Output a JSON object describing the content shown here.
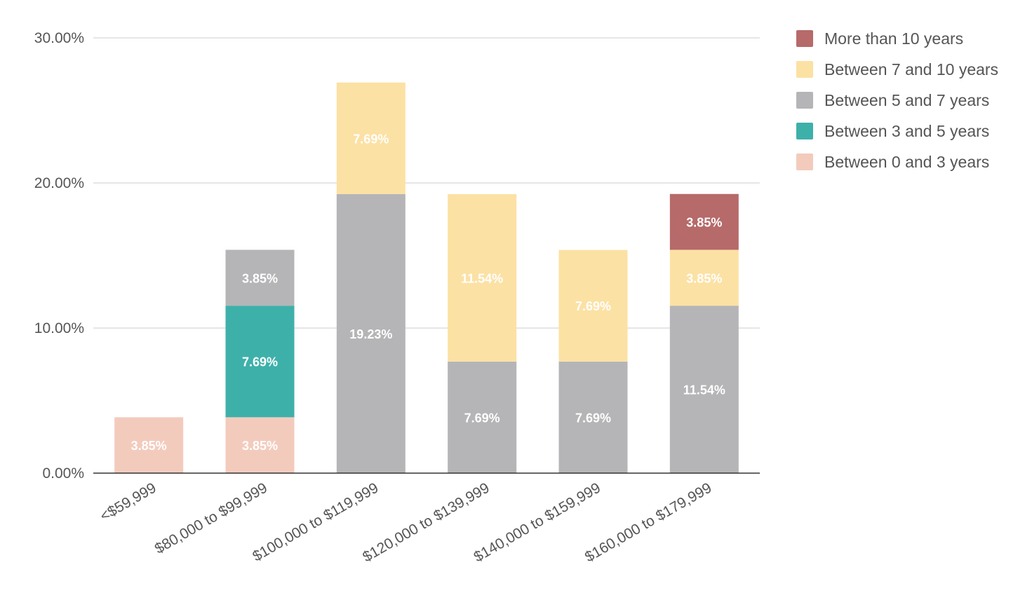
{
  "chart_data": {
    "type": "bar",
    "stacked": true,
    "title": "",
    "xlabel": "",
    "ylabel": "",
    "ylim": [
      0,
      30
    ],
    "yticks": [
      0,
      10,
      20,
      30
    ],
    "ytick_labels": [
      "0.00%",
      "10.00%",
      "20.00%",
      "30.00%"
    ],
    "grid": true,
    "legend_position": "top-right",
    "categories": [
      "<$59,999",
      "$80,000 to $99,999",
      "$100,000 to $119,999",
      "$120,000 to $139,999",
      "$140,000 to $159,999",
      "$160,000 to $179,999"
    ],
    "series": [
      {
        "name": "Between 0 and 3 years",
        "color": "#f3cbbd",
        "values": [
          3.85,
          3.85,
          0,
          0,
          0,
          0
        ],
        "labels": [
          "3.85%",
          "3.85%",
          "",
          "",
          "",
          ""
        ]
      },
      {
        "name": "Between 3 and 5 years",
        "color": "#3eb0aa",
        "values": [
          0,
          7.69,
          0,
          0,
          0,
          0
        ],
        "labels": [
          "",
          "7.69%",
          "",
          "",
          "",
          ""
        ]
      },
      {
        "name": "Between 5 and 7 years",
        "color": "#b5b5b7",
        "values": [
          0,
          3.85,
          19.23,
          7.69,
          7.69,
          11.54
        ],
        "labels": [
          "",
          "3.85%",
          "19.23%",
          "7.69%",
          "7.69%",
          "11.54%"
        ]
      },
      {
        "name": "Between 7 and 10 years",
        "color": "#fce1a4",
        "values": [
          0,
          0,
          7.69,
          11.54,
          7.69,
          3.85
        ],
        "labels": [
          "",
          "",
          "7.69%",
          "11.54%",
          "7.69%",
          "3.85%"
        ]
      },
      {
        "name": "More than 10 years",
        "color": "#b66a69",
        "values": [
          0,
          0,
          0,
          0,
          0,
          3.85
        ],
        "labels": [
          "",
          "",
          "",
          "",
          "",
          "3.85%"
        ]
      }
    ],
    "legend_order": [
      "More than 10 years",
      "Between 7 and 10 years",
      "Between 5 and 7 years",
      "Between 3 and 5 years",
      "Between 0 and 3 years"
    ]
  }
}
